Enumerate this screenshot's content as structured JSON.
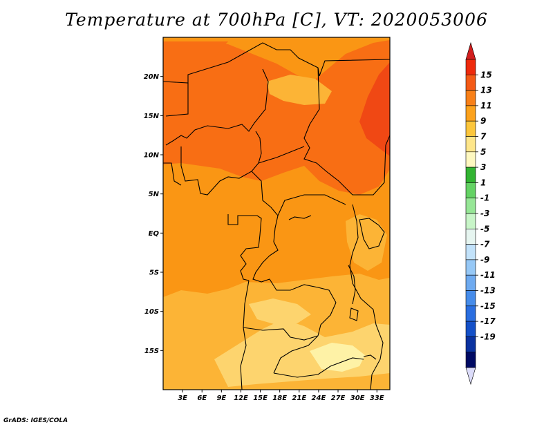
{
  "title": "Temperature at 700hPa [C], VT: 2020053006",
  "footer": "GrADS: IGES/COLA",
  "map": {
    "lon_range": [
      0,
      35
    ],
    "lat_range": [
      -20,
      25
    ],
    "lat_ticks": [
      {
        "value": 20,
        "label": "20N"
      },
      {
        "value": 15,
        "label": "15N"
      },
      {
        "value": 10,
        "label": "10N"
      },
      {
        "value": 5,
        "label": "5N"
      },
      {
        "value": 0,
        "label": "EQ"
      },
      {
        "value": -5,
        "label": "5S"
      },
      {
        "value": -10,
        "label": "10S"
      },
      {
        "value": -15,
        "label": "15S"
      }
    ],
    "lon_ticks": [
      {
        "value": 3,
        "label": "3E"
      },
      {
        "value": 6,
        "label": "6E"
      },
      {
        "value": 9,
        "label": "9E"
      },
      {
        "value": 12,
        "label": "12E"
      },
      {
        "value": 15,
        "label": "15E"
      },
      {
        "value": 18,
        "label": "18E"
      },
      {
        "value": 21,
        "label": "21E"
      },
      {
        "value": 24,
        "label": "24E"
      },
      {
        "value": 27,
        "label": "27E"
      },
      {
        "value": 30,
        "label": "30E"
      },
      {
        "value": 33,
        "label": "33E"
      }
    ],
    "colors": {
      "c13_15": "#f04814",
      "c11_13": "#f86e14",
      "c9_11": "#fa9614",
      "c7_9": "#fcb436",
      "c5_7": "#fdd46e",
      "c3_5": "#fef2a6",
      "border": "#000000"
    }
  },
  "colorbar": {
    "labels": [
      "15",
      "13",
      "11",
      "9",
      "7",
      "5",
      "3",
      "1",
      "-1",
      "-3",
      "-5",
      "-7",
      "-9",
      "-11",
      "-13",
      "-15",
      "-17",
      "-19"
    ],
    "colors": [
      "#ee2a0c",
      "#f45a16",
      "#f88018",
      "#fca21c",
      "#fcc63c",
      "#fee68a",
      "#fef8c0",
      "#32b432",
      "#64d264",
      "#96e696",
      "#c8f5c8",
      "#e6f5f0",
      "#c2e2fa",
      "#96c8f6",
      "#6eaaf0",
      "#468cea",
      "#2a6ee0",
      "#1450c8",
      "#0a32a0",
      "#000a64"
    ],
    "top_triangle_color": "#d21e1e",
    "bottom_triangle_color": "#dcdcfa"
  }
}
